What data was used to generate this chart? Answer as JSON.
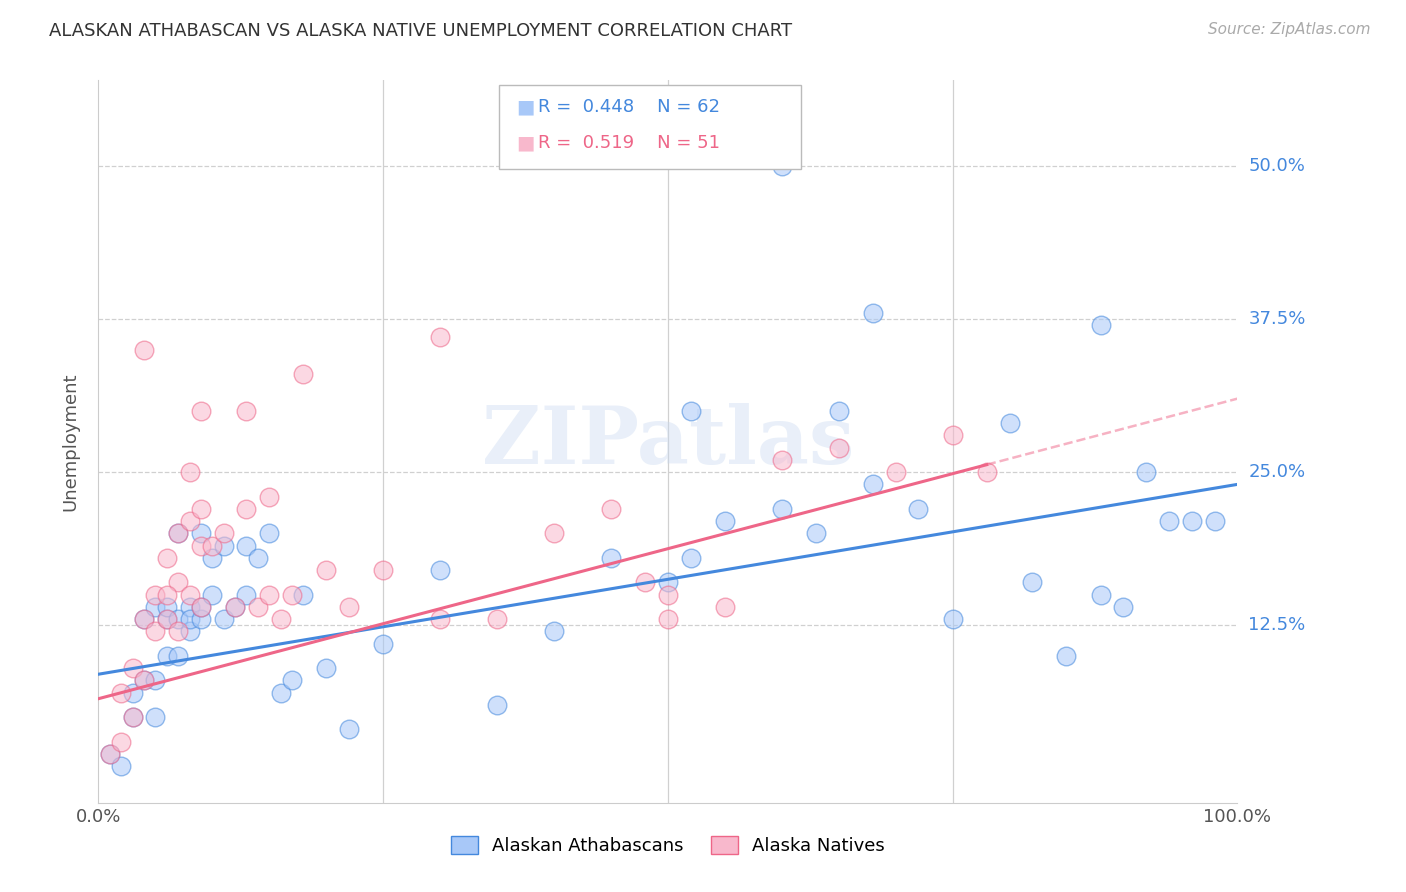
{
  "title": "ALASKAN ATHABASCAN VS ALASKA NATIVE UNEMPLOYMENT CORRELATION CHART",
  "source": "Source: ZipAtlas.com",
  "ylabel": "Unemployment",
  "ytick_labels": [
    "50.0%",
    "37.5%",
    "25.0%",
    "12.5%"
  ],
  "ytick_values": [
    0.5,
    0.375,
    0.25,
    0.125
  ],
  "xlim": [
    0.0,
    1.0
  ],
  "ylim": [
    -0.02,
    0.57
  ],
  "legend_blue_r": "0.448",
  "legend_blue_n": "62",
  "legend_pink_r": "0.519",
  "legend_pink_n": "51",
  "blue_color": "#a8c8f8",
  "pink_color": "#f8b8cc",
  "blue_line_color": "#4488dd",
  "pink_line_color": "#ee6688",
  "watermark": "ZIPatlas",
  "blue_slope": 0.155,
  "blue_intercept": 0.085,
  "pink_slope": 0.245,
  "pink_intercept": 0.065,
  "blue_x": [
    0.01,
    0.02,
    0.03,
    0.03,
    0.04,
    0.04,
    0.05,
    0.05,
    0.05,
    0.06,
    0.06,
    0.06,
    0.07,
    0.07,
    0.07,
    0.08,
    0.08,
    0.08,
    0.09,
    0.09,
    0.09,
    0.1,
    0.1,
    0.11,
    0.11,
    0.12,
    0.13,
    0.13,
    0.14,
    0.15,
    0.16,
    0.17,
    0.18,
    0.2,
    0.22,
    0.25,
    0.3,
    0.35,
    0.4,
    0.45,
    0.5,
    0.52,
    0.55,
    0.6,
    0.63,
    0.65,
    0.68,
    0.72,
    0.75,
    0.8,
    0.82,
    0.85,
    0.88,
    0.9,
    0.92,
    0.94,
    0.96,
    0.98,
    0.6,
    0.68,
    0.52,
    0.88
  ],
  "blue_y": [
    0.02,
    0.01,
    0.05,
    0.07,
    0.08,
    0.13,
    0.05,
    0.08,
    0.14,
    0.1,
    0.13,
    0.14,
    0.1,
    0.13,
    0.2,
    0.12,
    0.14,
    0.13,
    0.13,
    0.14,
    0.2,
    0.15,
    0.18,
    0.13,
    0.19,
    0.14,
    0.15,
    0.19,
    0.18,
    0.2,
    0.07,
    0.08,
    0.15,
    0.09,
    0.04,
    0.11,
    0.17,
    0.06,
    0.12,
    0.18,
    0.16,
    0.18,
    0.21,
    0.22,
    0.2,
    0.3,
    0.24,
    0.22,
    0.13,
    0.29,
    0.16,
    0.1,
    0.37,
    0.14,
    0.25,
    0.21,
    0.21,
    0.21,
    0.5,
    0.38,
    0.3,
    0.15
  ],
  "pink_x": [
    0.01,
    0.02,
    0.02,
    0.03,
    0.03,
    0.04,
    0.04,
    0.05,
    0.05,
    0.06,
    0.06,
    0.07,
    0.07,
    0.07,
    0.08,
    0.08,
    0.09,
    0.09,
    0.09,
    0.1,
    0.11,
    0.12,
    0.13,
    0.14,
    0.15,
    0.15,
    0.16,
    0.17,
    0.18,
    0.2,
    0.22,
    0.25,
    0.3,
    0.35,
    0.4,
    0.45,
    0.5,
    0.55,
    0.6,
    0.65,
    0.7,
    0.75,
    0.78,
    0.08,
    0.06,
    0.13,
    0.09,
    0.04,
    0.3,
    0.48,
    0.5
  ],
  "pink_y": [
    0.02,
    0.03,
    0.07,
    0.05,
    0.09,
    0.08,
    0.13,
    0.12,
    0.15,
    0.13,
    0.18,
    0.12,
    0.16,
    0.2,
    0.15,
    0.21,
    0.14,
    0.19,
    0.22,
    0.19,
    0.2,
    0.14,
    0.22,
    0.14,
    0.15,
    0.23,
    0.13,
    0.15,
    0.33,
    0.17,
    0.14,
    0.17,
    0.36,
    0.13,
    0.2,
    0.22,
    0.13,
    0.14,
    0.26,
    0.27,
    0.25,
    0.28,
    0.25,
    0.25,
    0.15,
    0.3,
    0.3,
    0.35,
    0.13,
    0.16,
    0.15
  ]
}
